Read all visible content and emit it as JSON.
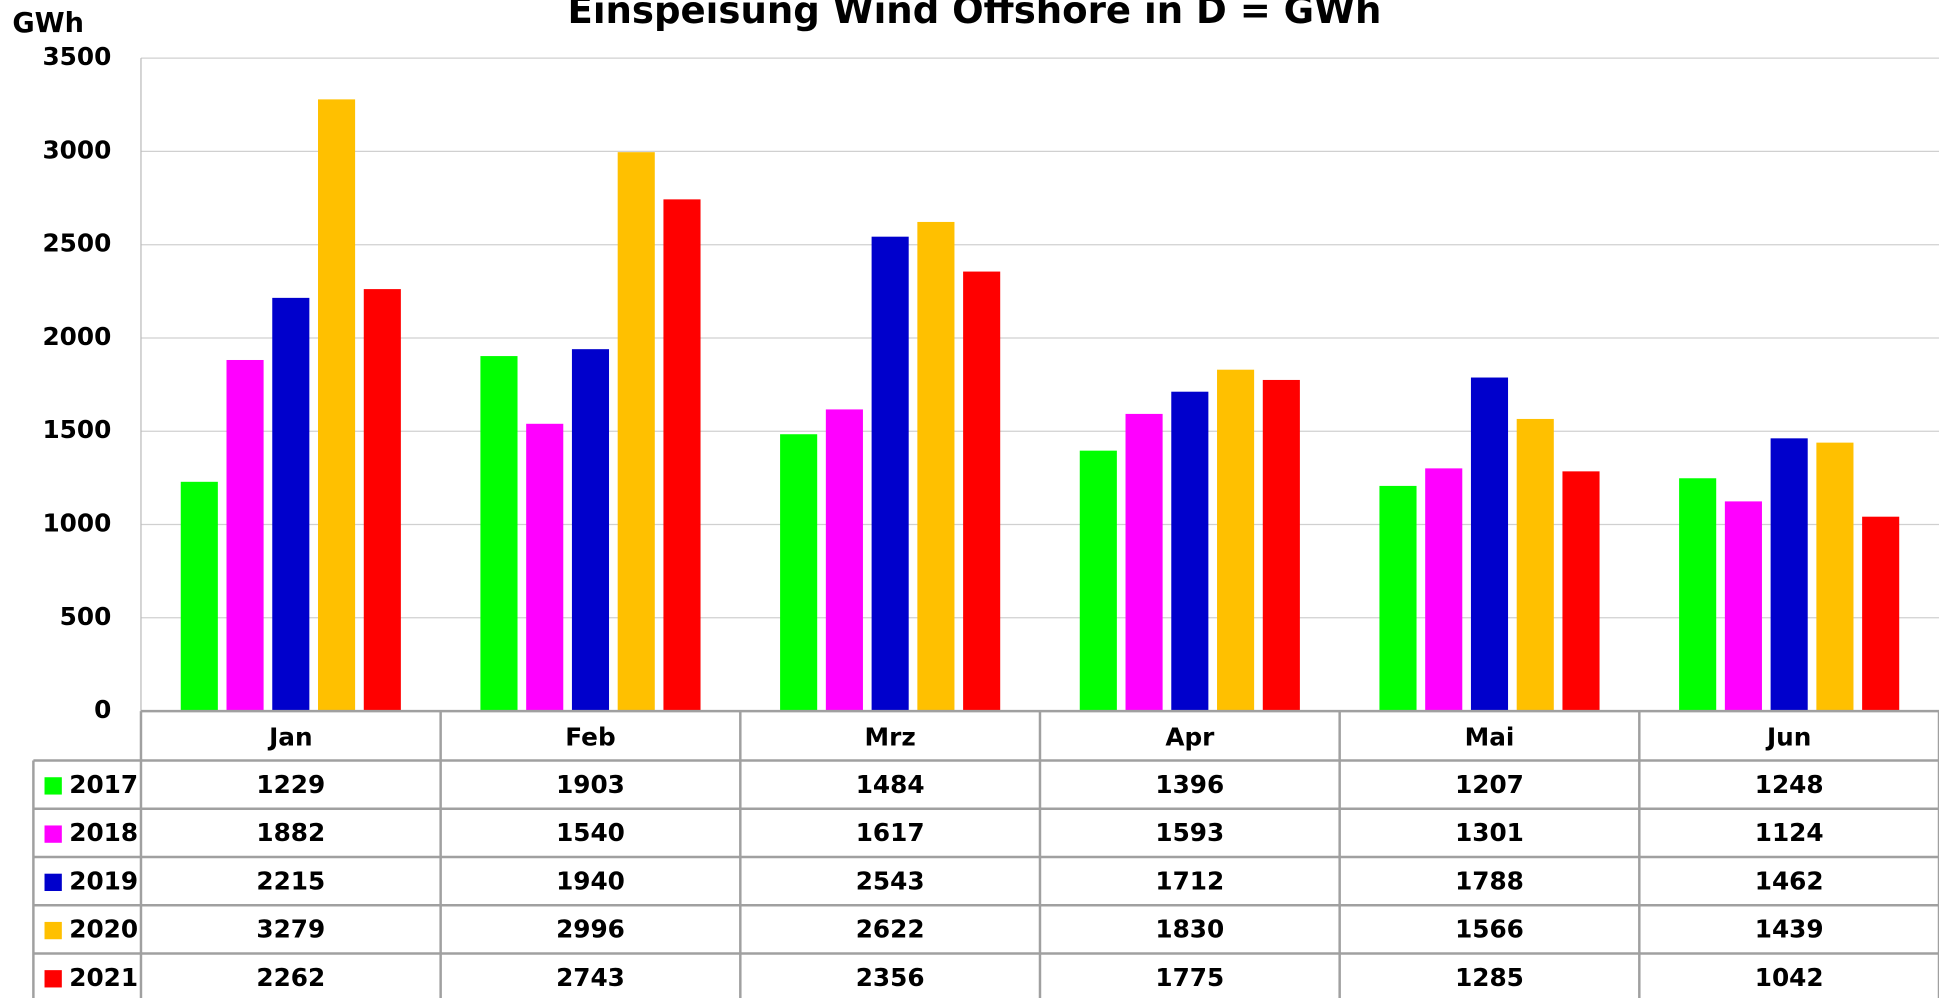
{
  "chart_data": {
    "type": "bar",
    "title": "Einspeisung Wind Offshore  in D  =  GWh",
    "y_label": "GWh",
    "categories": [
      "Jan",
      "Feb",
      "Mrz",
      "Apr",
      "Mai",
      "Jun"
    ],
    "series": [
      {
        "name": "2017",
        "color": "#00ff00",
        "values": [
          1229,
          1903,
          1484,
          1396,
          1207,
          1248
        ]
      },
      {
        "name": "2018",
        "color": "#ff00ff",
        "values": [
          1882,
          1540,
          1617,
          1593,
          1301,
          1124
        ]
      },
      {
        "name": "2019",
        "color": "#0000cc",
        "values": [
          2215,
          1940,
          2543,
          1712,
          1788,
          1462
        ]
      },
      {
        "name": "2020",
        "color": "#ffc000",
        "values": [
          3279,
          2996,
          2622,
          1830,
          1566,
          1439
        ]
      },
      {
        "name": "2021",
        "color": "#ff0000",
        "values": [
          2262,
          2743,
          2356,
          1775,
          1285,
          1042
        ]
      }
    ],
    "ylim": [
      0,
      3500
    ],
    "yticks": [
      0,
      500,
      1000,
      1500,
      2000,
      2500,
      3000,
      3500
    ],
    "grid": true,
    "data_table": true
  }
}
